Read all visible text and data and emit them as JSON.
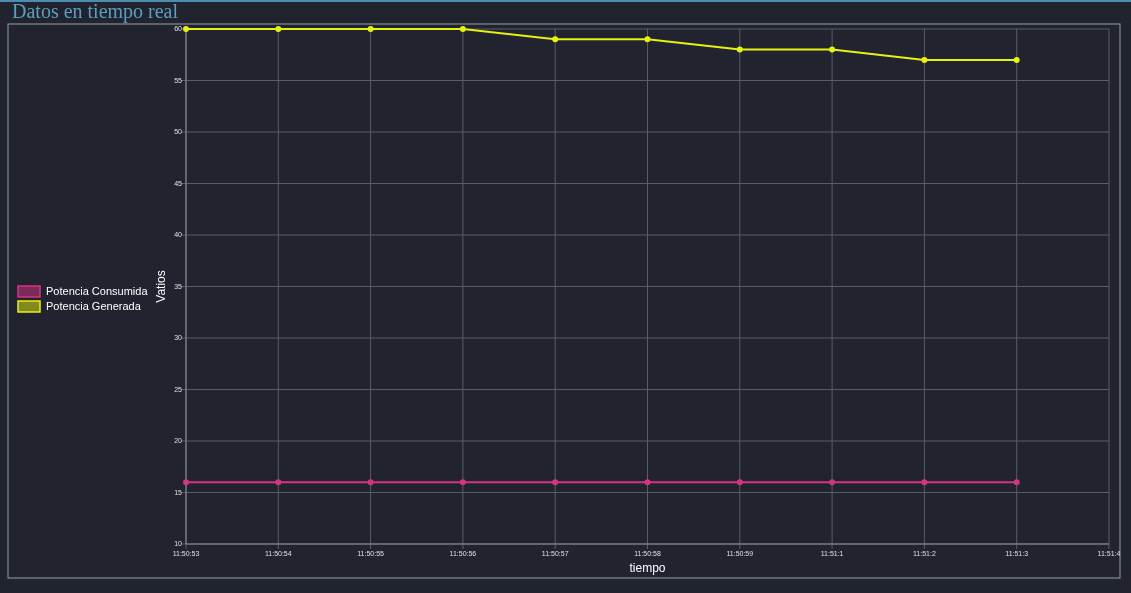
{
  "chart_data": {
    "type": "line",
    "title": "Datos en tiempo real",
    "xlabel": "tiempo",
    "ylabel": "Vatios",
    "categories": [
      "11:50:53",
      "11:50:54",
      "11:50:55",
      "11:50:56",
      "11:50:57",
      "11:50:58",
      "11:50:59",
      "11:51:1",
      "11:51:2",
      "11:51:3",
      "11:51:4"
    ],
    "series": [
      {
        "name": "Potencia Consumida",
        "color": "#d63384",
        "values": [
          16,
          16,
          16,
          16,
          16,
          16,
          16,
          16,
          16,
          16,
          null
        ]
      },
      {
        "name": "Potencia Generada",
        "color": "#e6f20f",
        "values": [
          60,
          60,
          60,
          60,
          59,
          59,
          58,
          58,
          57,
          57,
          null
        ]
      }
    ],
    "ylim": [
      10,
      60
    ],
    "yticks": [
      10,
      15,
      20,
      25,
      30,
      35,
      40,
      45,
      50,
      55,
      60
    ],
    "grid": true,
    "legend": "left",
    "marker": "circle",
    "line_style": "solid"
  }
}
